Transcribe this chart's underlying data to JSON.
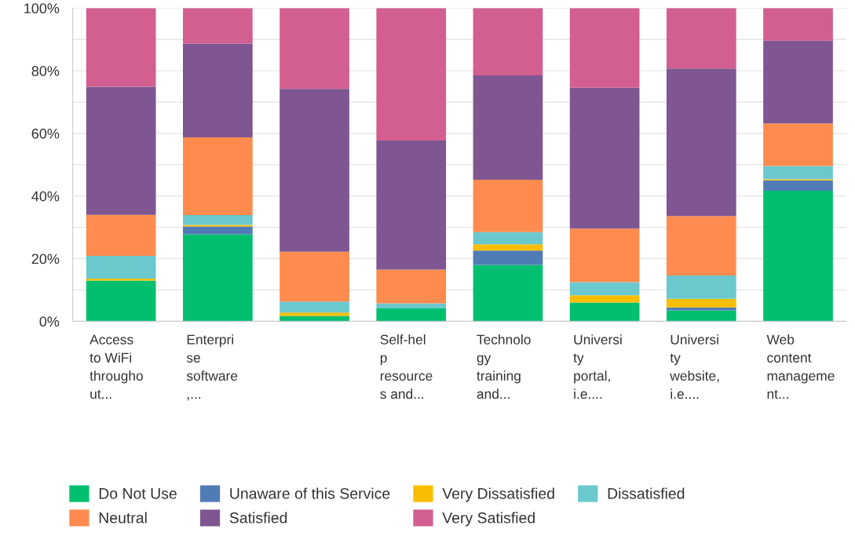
{
  "chart_data": {
    "type": "bar",
    "stacked": true,
    "categories": [
      "Access\nto WiFi\nthrougho\nut...",
      "Enterpri\nse\nsoftware\n,...",
      null,
      "Self-hel\np\nresource\ns and...",
      "Technolo\ngy\ntraining\nand...",
      "Universi\nty\nportal,\ni.e....",
      "Universi\nty\nwebsite,\ni.e....",
      "Web\ncontent\nmanageme\nnt..."
    ],
    "series": [
      {
        "name": "Do Not Use",
        "color": "#00bf6f",
        "values": [
          13.0,
          27.8,
          1.7,
          4.1,
          18.0,
          6.0,
          3.5,
          41.7
        ]
      },
      {
        "name": "Unaware of this Service",
        "color": "#507cb6",
        "values": [
          0,
          2.5,
          0,
          0,
          4.6,
          0,
          0.9,
          3.3
        ]
      },
      {
        "name": "Very Dissatisfied",
        "color": "#f9be00",
        "values": [
          0.6,
          0.5,
          1.1,
          0,
          2.0,
          2.3,
          2.8,
          0.4
        ]
      },
      {
        "name": "Dissatisfied",
        "color": "#6bc8cd",
        "values": [
          7.3,
          3.1,
          3.5,
          1.6,
          3.9,
          4.2,
          7.4,
          4.2
        ]
      },
      {
        "name": "Neutral",
        "color": "#ff8b4f",
        "values": [
          13.1,
          24.8,
          15.9,
          10.8,
          16.7,
          17.1,
          19.0,
          13.6
        ]
      },
      {
        "name": "Satisfied",
        "color": "#7f5691",
        "values": [
          40.9,
          30.0,
          52.0,
          41.2,
          33.3,
          45.0,
          47.1,
          26.4
        ]
      },
      {
        "name": "Very Satisfied",
        "color": "#d25f90",
        "values": [
          25.1,
          11.3,
          25.8,
          42.3,
          21.5,
          25.4,
          19.3,
          10.4
        ]
      }
    ],
    "ylim": [
      0,
      100
    ],
    "yticks": [
      {
        "value": 0,
        "label": "0%"
      },
      {
        "value": 10,
        "label": null
      },
      {
        "value": 20,
        "label": "20%"
      },
      {
        "value": 30,
        "label": null
      },
      {
        "value": 40,
        "label": "40%"
      },
      {
        "value": 50,
        "label": null
      },
      {
        "value": 60,
        "label": "60%"
      },
      {
        "value": 70,
        "label": null
      },
      {
        "value": 80,
        "label": "80%"
      },
      {
        "value": 90,
        "label": null
      },
      {
        "value": 100,
        "label": "100%"
      }
    ],
    "grid": "y",
    "legend": "bottom"
  }
}
